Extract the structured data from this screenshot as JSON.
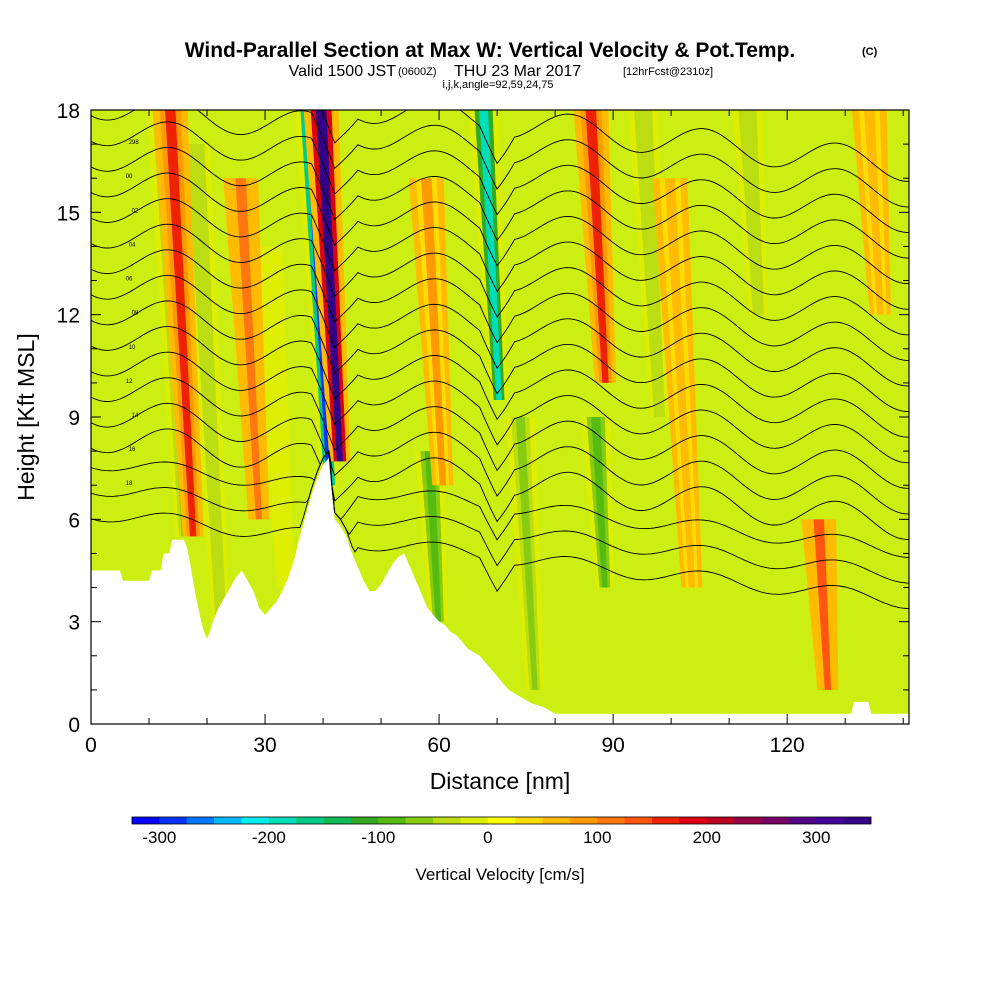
{
  "header": {
    "title": "Wind-Parallel Section at Max W: Vertical Velocity & Pot.Temp.",
    "copyright": "(C)",
    "valid_prefix": "Valid 1500 JST",
    "valid_utc": "(0600Z)",
    "valid_date": "THU 23 Mar 2017",
    "forecast": "[12hrFcst@2310z]",
    "indices": "i,j,k,angle=92,59,24,75"
  },
  "chart_data": {
    "type": "heatmap",
    "title": "Wind-Parallel Section at Max W: Vertical Velocity & Pot.Temp.",
    "xlabel": "Distance [nm]",
    "ylabel": "Height [Kft MSL]",
    "xlim": [
      0,
      141
    ],
    "ylim": [
      0,
      18
    ],
    "xticks": [
      0,
      30,
      60,
      90,
      120
    ],
    "yticks": [
      0,
      3,
      6,
      9,
      12,
      15,
      18
    ],
    "colorbar": {
      "label": "Vertical Velocity [cm/s]",
      "min": -325,
      "max": 350,
      "step": 25,
      "ticks": [
        -300,
        -200,
        -100,
        0,
        100,
        200,
        300
      ],
      "colors": [
        "#0000ff",
        "#0033ff",
        "#0077ff",
        "#00bbff",
        "#00eeee",
        "#00ddbb",
        "#00cc88",
        "#11bb55",
        "#33aa22",
        "#55bb11",
        "#88cc11",
        "#bbdd11",
        "#ddee00",
        "#ffff00",
        "#ffdd00",
        "#ffbb00",
        "#ff9900",
        "#ff7711",
        "#ff5511",
        "#ee2200",
        "#dd0011",
        "#bb0022",
        "#990044",
        "#770066",
        "#550088",
        "#440099",
        "#330088"
      ]
    },
    "updrafts": [
      {
        "x": 16.5,
        "ztop": 18,
        "zbot": 5.5,
        "value": 150
      },
      {
        "x": 28,
        "ztop": 16,
        "zbot": 6,
        "value": 100
      },
      {
        "x": 42.5,
        "ztop": 18,
        "zbot": 7.7,
        "value": 325
      },
      {
        "x": 60,
        "ztop": 16,
        "zbot": 7,
        "value": 75
      },
      {
        "x": 89,
        "ztop": 18,
        "zbot": 10,
        "value": 150
      },
      {
        "x": 102,
        "ztop": 16,
        "zbot": 4,
        "value": 50
      },
      {
        "x": 124.5,
        "ztop": 6,
        "zbot": 1,
        "value": 125
      },
      {
        "x": 137,
        "ztop": 18,
        "zbot": 12,
        "value": 50
      }
    ],
    "downdrafts": [
      {
        "x": 15,
        "ztop": 18,
        "zbot": 5.5,
        "value": -75
      },
      {
        "x": 20.5,
        "ztop": 17,
        "zbot": 3,
        "value": -50
      },
      {
        "x": 32,
        "ztop": 14,
        "zbot": 4,
        "value": -25
      },
      {
        "x": 40.5,
        "ztop": 18,
        "zbot": 7,
        "value": -300
      },
      {
        "x": 70.5,
        "ztop": 18,
        "zbot": 9.5,
        "value": -200
      },
      {
        "x": 58,
        "ztop": 8,
        "zbot": 3,
        "value": -100
      },
      {
        "x": 74,
        "ztop": 9,
        "zbot": 1,
        "value": -75
      },
      {
        "x": 87,
        "ztop": 9,
        "zbot": 4,
        "value": -100
      },
      {
        "x": 98,
        "ztop": 18,
        "zbot": 9,
        "value": -50
      },
      {
        "x": 116,
        "ztop": 18,
        "zbot": 12,
        "value": -50
      }
    ],
    "terrain": [
      [
        0,
        4.5
      ],
      [
        5,
        4.5
      ],
      [
        5.5,
        4.2
      ],
      [
        10,
        4.2
      ],
      [
        10.5,
        4.5
      ],
      [
        12,
        4.5
      ],
      [
        12.5,
        5
      ],
      [
        13.5,
        5
      ],
      [
        14,
        5.4
      ],
      [
        16,
        5.4
      ],
      [
        16.5,
        5.2
      ],
      [
        17,
        4.8
      ],
      [
        17.5,
        4.3
      ],
      [
        18,
        3.8
      ],
      [
        18.5,
        3.4
      ],
      [
        19,
        3.0
      ],
      [
        19.5,
        2.7
      ],
      [
        20,
        2.5
      ],
      [
        20.5,
        2.7
      ],
      [
        21,
        3.0
      ],
      [
        22,
        3.4
      ],
      [
        23,
        3.7
      ],
      [
        24,
        4.0
      ],
      [
        25,
        4.3
      ],
      [
        26,
        4.5
      ],
      [
        27,
        4.2
      ],
      [
        28,
        3.9
      ],
      [
        29,
        3.4
      ],
      [
        30,
        3.2
      ],
      [
        31,
        3.4
      ],
      [
        32,
        3.6
      ],
      [
        33,
        3.9
      ],
      [
        34,
        4.3
      ],
      [
        35,
        4.8
      ],
      [
        36,
        5.5
      ],
      [
        37,
        6.1
      ],
      [
        38,
        6.7
      ],
      [
        39,
        7.2
      ],
      [
        40,
        7.6
      ],
      [
        41,
        7.8
      ],
      [
        41.5,
        6.8
      ],
      [
        42,
        6.0
      ],
      [
        43,
        5.8
      ],
      [
        44,
        5.5
      ],
      [
        45,
        5.0
      ],
      [
        46,
        4.6
      ],
      [
        47,
        4.2
      ],
      [
        48,
        3.9
      ],
      [
        49,
        3.9
      ],
      [
        50,
        4.1
      ],
      [
        51,
        4.4
      ],
      [
        52,
        4.7
      ],
      [
        53,
        4.9
      ],
      [
        54,
        5.0
      ],
      [
        55,
        4.6
      ],
      [
        56,
        4.2
      ],
      [
        57,
        3.8
      ],
      [
        58,
        3.4
      ],
      [
        59,
        3.2
      ],
      [
        60,
        3.0
      ],
      [
        61,
        2.9
      ],
      [
        62,
        2.7
      ],
      [
        63,
        2.6
      ],
      [
        64,
        2.4
      ],
      [
        65,
        2.2
      ],
      [
        66,
        2.1
      ],
      [
        67,
        2.0
      ],
      [
        68,
        1.8
      ],
      [
        69,
        1.6
      ],
      [
        70,
        1.4
      ],
      [
        71,
        1.2
      ],
      [
        72,
        1.0
      ],
      [
        74,
        0.8
      ],
      [
        76,
        0.6
      ],
      [
        78,
        0.5
      ],
      [
        79,
        0.4
      ],
      [
        80,
        0.3
      ],
      [
        131,
        0.3
      ],
      [
        131.5,
        0.65
      ],
      [
        134,
        0.65
      ],
      [
        134.5,
        0.3
      ],
      [
        141,
        0.3
      ]
    ],
    "theta_contours": {
      "spacing_kft": 0.75,
      "near_surface_base_kft": 6.2,
      "wave_amplitude_kft": 0.45,
      "labels": [
        "18",
        "16",
        "14",
        "12",
        "10",
        "08",
        "06",
        "04",
        "02",
        "00",
        "298"
      ]
    }
  }
}
